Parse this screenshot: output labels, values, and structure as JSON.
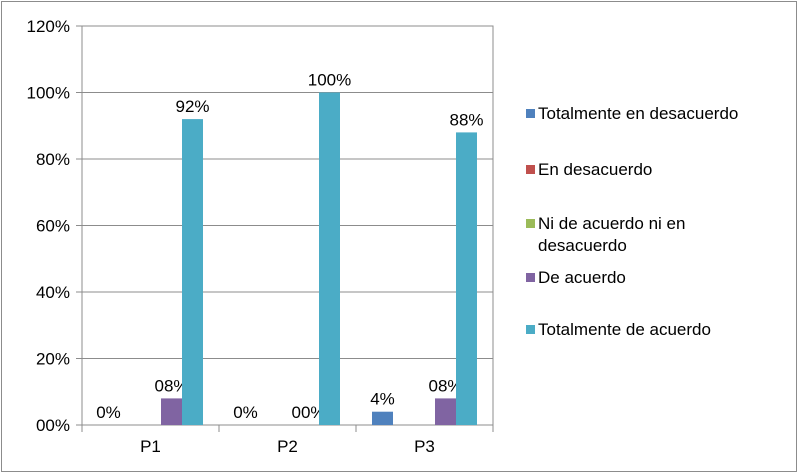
{
  "chart_data": {
    "type": "bar",
    "categories": [
      "P1",
      "P2",
      "P3"
    ],
    "series": [
      {
        "name": "Totalmente en desacuerdo",
        "color": "#4f81bd",
        "values": [
          0,
          0,
          4
        ],
        "labels": [
          "0%",
          "0%",
          "4%"
        ]
      },
      {
        "name": "En desacuerdo",
        "color": "#c0504d",
        "values": [
          0,
          0,
          0
        ],
        "labels": [
          "",
          "",
          ""
        ]
      },
      {
        "name": "Ni de acuerdo ni en desacuerdo",
        "color": "#9bbb59",
        "values": [
          0,
          0,
          0
        ],
        "labels": [
          "",
          "",
          ""
        ]
      },
      {
        "name": "De acuerdo",
        "color": "#8064a2",
        "values": [
          8,
          0,
          8
        ],
        "labels": [
          "08%",
          "00%",
          "08%"
        ]
      },
      {
        "name": "Totalmente de acuerdo",
        "color": "#4bacc6",
        "values": [
          92,
          100,
          88
        ],
        "labels": [
          "92%",
          "100%",
          "88%"
        ]
      }
    ],
    "ylim": [
      0,
      120
    ],
    "yticks": [
      0,
      20,
      40,
      60,
      80,
      100,
      120
    ],
    "ytick_labels": [
      "00%",
      "20%",
      "40%",
      "60%",
      "80%",
      "100%",
      "120%"
    ],
    "grid": true,
    "legend": "right",
    "legend_lines": [
      [
        "Totalmente en desacuerdo"
      ],
      [
        "En desacuerdo"
      ],
      [
        "Ni de acuerdo ni en",
        "desacuerdo"
      ],
      [
        "De acuerdo"
      ],
      [
        "Totalmente de acuerdo"
      ]
    ]
  }
}
